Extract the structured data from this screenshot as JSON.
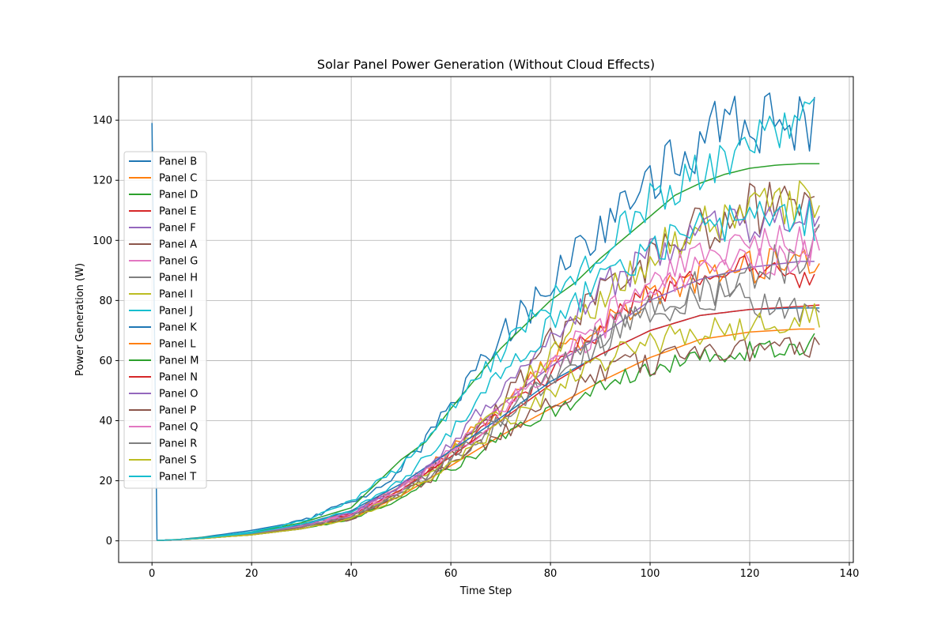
{
  "chart_data": {
    "type": "line",
    "title": "Solar Panel Power Generation (Without Cloud Effects)",
    "xlabel": "Time Step",
    "ylabel": "Power Generation (W)",
    "xlim": [
      -6.7,
      140.8
    ],
    "ylim": [
      -7.2,
      154.5
    ],
    "x_ticks": [
      0,
      20,
      40,
      60,
      80,
      100,
      120,
      140
    ],
    "y_ticks": [
      0,
      20,
      40,
      60,
      80,
      100,
      120,
      140
    ],
    "grid": true,
    "legend_position": "center-left",
    "series": [
      {
        "name": "Panel B",
        "color": "#1f77b4",
        "noise": 0.08,
        "seed": 11,
        "x": [
          0,
          1,
          2,
          5,
          10,
          20,
          30,
          40,
          45,
          50,
          55,
          60,
          65,
          70,
          75,
          80,
          85,
          90,
          95,
          100,
          105,
          110,
          115,
          120,
          125,
          130,
          133
        ],
        "y": [
          138,
          0.2,
          0.2,
          0.4,
          1.2,
          3.5,
          6.5,
          13,
          17,
          24,
          33,
          46,
          56,
          67,
          76,
          88,
          95,
          102,
          111,
          120,
          128,
          134,
          138,
          140,
          140,
          140,
          140
        ]
      },
      {
        "name": "Panel C",
        "color": "#ff7f0e",
        "noise": 0.06,
        "seed": 12,
        "x": [
          1,
          2,
          5,
          10,
          20,
          30,
          40,
          50,
          60,
          70,
          80,
          90,
          100,
          110,
          120,
          130,
          134
        ],
        "y": [
          0.2,
          0.2,
          0.4,
          0.9,
          2.5,
          5,
          9.5,
          18,
          30,
          45,
          60,
          72,
          82,
          88,
          91,
          93,
          94
        ]
      },
      {
        "name": "Panel D",
        "color": "#2ca02c",
        "noise": 0,
        "seed": 13,
        "x": [
          1,
          2,
          5,
          10,
          20,
          30,
          40,
          50,
          55,
          60,
          65,
          70,
          75,
          80,
          85,
          90,
          95,
          100,
          105,
          110,
          115,
          120,
          125,
          130,
          134
        ],
        "y": [
          0.2,
          0.2,
          0.4,
          1.1,
          2.8,
          6,
          11,
          27,
          33,
          44,
          54,
          64,
          72,
          80,
          86,
          94,
          101,
          108,
          115,
          119,
          122,
          124,
          125,
          125.5,
          125.5
        ]
      },
      {
        "name": "Panel E",
        "color": "#d62728",
        "noise": 0.06,
        "seed": 14,
        "x": [
          1,
          2,
          5,
          10,
          20,
          30,
          40,
          50,
          60,
          70,
          80,
          90,
          100,
          110,
          120,
          130,
          133
        ],
        "y": [
          0.2,
          0.2,
          0.4,
          0.9,
          2.4,
          5,
          9,
          18,
          29,
          42,
          56,
          70,
          82,
          88,
          91,
          88,
          87
        ]
      },
      {
        "name": "Panel F",
        "color": "#9467bd",
        "noise": 0,
        "seed": 15,
        "x": [
          1,
          2,
          5,
          10,
          20,
          30,
          40,
          50,
          60,
          70,
          80,
          90,
          100,
          110,
          120,
          130,
          133
        ],
        "y": [
          0.2,
          0.2,
          0.4,
          0.9,
          2.5,
          5,
          9.5,
          18,
          30,
          45,
          58,
          68,
          80,
          87,
          91,
          93,
          93
        ]
      },
      {
        "name": "Panel A",
        "color": "#8c564b",
        "noise": 0.09,
        "seed": 16,
        "x": [
          1,
          2,
          5,
          10,
          20,
          30,
          40,
          50,
          60,
          70,
          80,
          90,
          100,
          110,
          120,
          130,
          133
        ],
        "y": [
          0.2,
          0.2,
          0.4,
          0.9,
          2.3,
          4.5,
          8,
          16,
          28,
          45,
          66,
          80,
          92,
          105,
          112,
          112,
          115
        ]
      },
      {
        "name": "Panel G",
        "color": "#e377c2",
        "noise": 0.06,
        "seed": 17,
        "x": [
          1,
          2,
          5,
          10,
          20,
          30,
          40,
          50,
          60,
          70,
          80,
          90,
          100,
          110,
          120,
          130,
          134
        ],
        "y": [
          0.2,
          0.2,
          0.4,
          0.9,
          2.5,
          5,
          9,
          18,
          30,
          44,
          58,
          70,
          82,
          90,
          93,
          94,
          99
        ]
      },
      {
        "name": "Panel H",
        "color": "#7f7f7f",
        "noise": 0.08,
        "seed": 18,
        "x": [
          1,
          2,
          5,
          10,
          20,
          30,
          40,
          50,
          60,
          70,
          80,
          90,
          100,
          110,
          120,
          130,
          134
        ],
        "y": [
          0.2,
          0.2,
          0.4,
          0.9,
          2.3,
          4.6,
          8,
          16,
          27,
          40,
          53,
          65,
          76,
          84,
          88,
          95,
          101
        ]
      },
      {
        "name": "Panel I",
        "color": "#bcbd22",
        "noise": 0.07,
        "seed": 19,
        "x": [
          1,
          2,
          5,
          10,
          20,
          30,
          40,
          50,
          60,
          70,
          80,
          90,
          100,
          110,
          120,
          130,
          134
        ],
        "y": [
          0.2,
          0.2,
          0.4,
          0.8,
          2.2,
          4.5,
          8.5,
          17,
          29,
          44,
          62,
          80,
          95,
          105,
          110,
          112,
          111
        ]
      },
      {
        "name": "Panel J",
        "color": "#17becf",
        "noise": 0.06,
        "seed": 20,
        "x": [
          1,
          2,
          5,
          10,
          20,
          30,
          40,
          50,
          60,
          70,
          80,
          90,
          100,
          110,
          120,
          130,
          133
        ],
        "y": [
          0.2,
          0.2,
          0.4,
          1,
          3,
          6.5,
          13,
          25,
          44,
          63,
          80,
          95,
          113,
          124,
          133,
          138,
          140
        ]
      },
      {
        "name": "Panel K",
        "color": "#1f77b4",
        "noise": 0,
        "seed": 21,
        "x": [
          1,
          2,
          5,
          10,
          20,
          30,
          40,
          50,
          60,
          70,
          80,
          90,
          100,
          110,
          120,
          130,
          134
        ],
        "y": [
          0.2,
          0.2,
          0.4,
          0.9,
          2.4,
          5.5,
          10,
          19,
          30,
          41,
          53,
          62,
          70,
          75,
          77,
          77.5,
          77.5
        ]
      },
      {
        "name": "Panel L",
        "color": "#ff7f0e",
        "noise": 0,
        "seed": 22,
        "x": [
          1,
          2,
          5,
          10,
          20,
          30,
          40,
          50,
          60,
          70,
          80,
          90,
          100,
          110,
          120,
          130,
          133
        ],
        "y": [
          0.2,
          0.2,
          0.4,
          0.8,
          2,
          4,
          7.5,
          15,
          25,
          35,
          44,
          53,
          61,
          67,
          69.5,
          70.5,
          70.5
        ]
      },
      {
        "name": "Panel M",
        "color": "#2ca02c",
        "noise": 0.06,
        "seed": 23,
        "x": [
          1,
          2,
          5,
          10,
          20,
          30,
          40,
          50,
          60,
          70,
          80,
          90,
          100,
          110,
          120,
          130,
          133
        ],
        "y": [
          0.2,
          0.2,
          0.4,
          0.8,
          2,
          4,
          7,
          14,
          24,
          34,
          43,
          51,
          58,
          62,
          64,
          65,
          66
        ]
      },
      {
        "name": "Panel N",
        "color": "#d62728",
        "noise": 0,
        "seed": 24,
        "x": [
          1,
          2,
          5,
          10,
          20,
          30,
          40,
          50,
          60,
          70,
          80,
          90,
          100,
          110,
          120,
          130,
          134
        ],
        "y": [
          0.2,
          0.2,
          0.4,
          0.9,
          2.2,
          4.5,
          8.5,
          17,
          28,
          40,
          52,
          62,
          70,
          75,
          77,
          78,
          78.5
        ]
      },
      {
        "name": "Panel O",
        "color": "#9467bd",
        "noise": 0.07,
        "seed": 25,
        "x": [
          1,
          2,
          5,
          10,
          20,
          30,
          40,
          50,
          60,
          70,
          80,
          90,
          100,
          110,
          120,
          130,
          134
        ],
        "y": [
          0.2,
          0.2,
          0.4,
          0.9,
          2.5,
          5,
          9,
          18,
          32,
          50,
          68,
          84,
          95,
          102,
          106,
          108,
          110
        ]
      },
      {
        "name": "Panel P",
        "color": "#8c564b",
        "noise": 0.08,
        "seed": 26,
        "x": [
          1,
          2,
          5,
          10,
          20,
          30,
          40,
          50,
          60,
          70,
          80,
          90,
          100,
          110,
          120,
          130,
          134
        ],
        "y": [
          0.2,
          0.2,
          0.4,
          0.8,
          2,
          4,
          7.5,
          15,
          25,
          36,
          46,
          55,
          60,
          62,
          63,
          64,
          66
        ]
      },
      {
        "name": "Panel Q",
        "color": "#e377c2",
        "noise": 0.06,
        "seed": 27,
        "x": [
          1,
          2,
          5,
          10,
          20,
          30,
          40,
          50,
          60,
          70,
          80,
          90,
          100,
          110,
          120,
          130,
          134
        ],
        "y": [
          0.2,
          0.2,
          0.4,
          0.9,
          2.3,
          4.8,
          8.5,
          17,
          29,
          42,
          58,
          74,
          86,
          94,
          98,
          100,
          100
        ]
      },
      {
        "name": "Panel R",
        "color": "#7f7f7f",
        "noise": 0.07,
        "seed": 28,
        "x": [
          1,
          2,
          5,
          10,
          20,
          30,
          40,
          50,
          60,
          70,
          80,
          90,
          100,
          110,
          120,
          130,
          134
        ],
        "y": [
          0.2,
          0.2,
          0.4,
          0.9,
          2.3,
          4.6,
          8,
          16,
          27,
          40,
          55,
          68,
          78,
          82,
          80,
          78,
          76
        ]
      },
      {
        "name": "Panel S",
        "color": "#bcbd22",
        "noise": 0.07,
        "seed": 29,
        "x": [
          1,
          2,
          5,
          10,
          20,
          30,
          40,
          50,
          60,
          70,
          80,
          90,
          100,
          110,
          120,
          130,
          134
        ],
        "y": [
          0.2,
          0.2,
          0.4,
          0.8,
          2,
          4,
          7.5,
          15,
          26,
          38,
          50,
          60,
          66,
          70,
          72,
          74,
          74
        ]
      },
      {
        "name": "Panel T",
        "color": "#17becf",
        "noise": 0.06,
        "seed": 30,
        "x": [
          1,
          2,
          5,
          10,
          20,
          30,
          40,
          50,
          60,
          70,
          80,
          90,
          100,
          110,
          120,
          130,
          133
        ],
        "y": [
          0.2,
          0.2,
          0.4,
          0.9,
          2.6,
          5.5,
          10,
          20,
          36,
          55,
          72,
          86,
          97,
          104,
          107,
          108,
          106
        ]
      }
    ]
  }
}
